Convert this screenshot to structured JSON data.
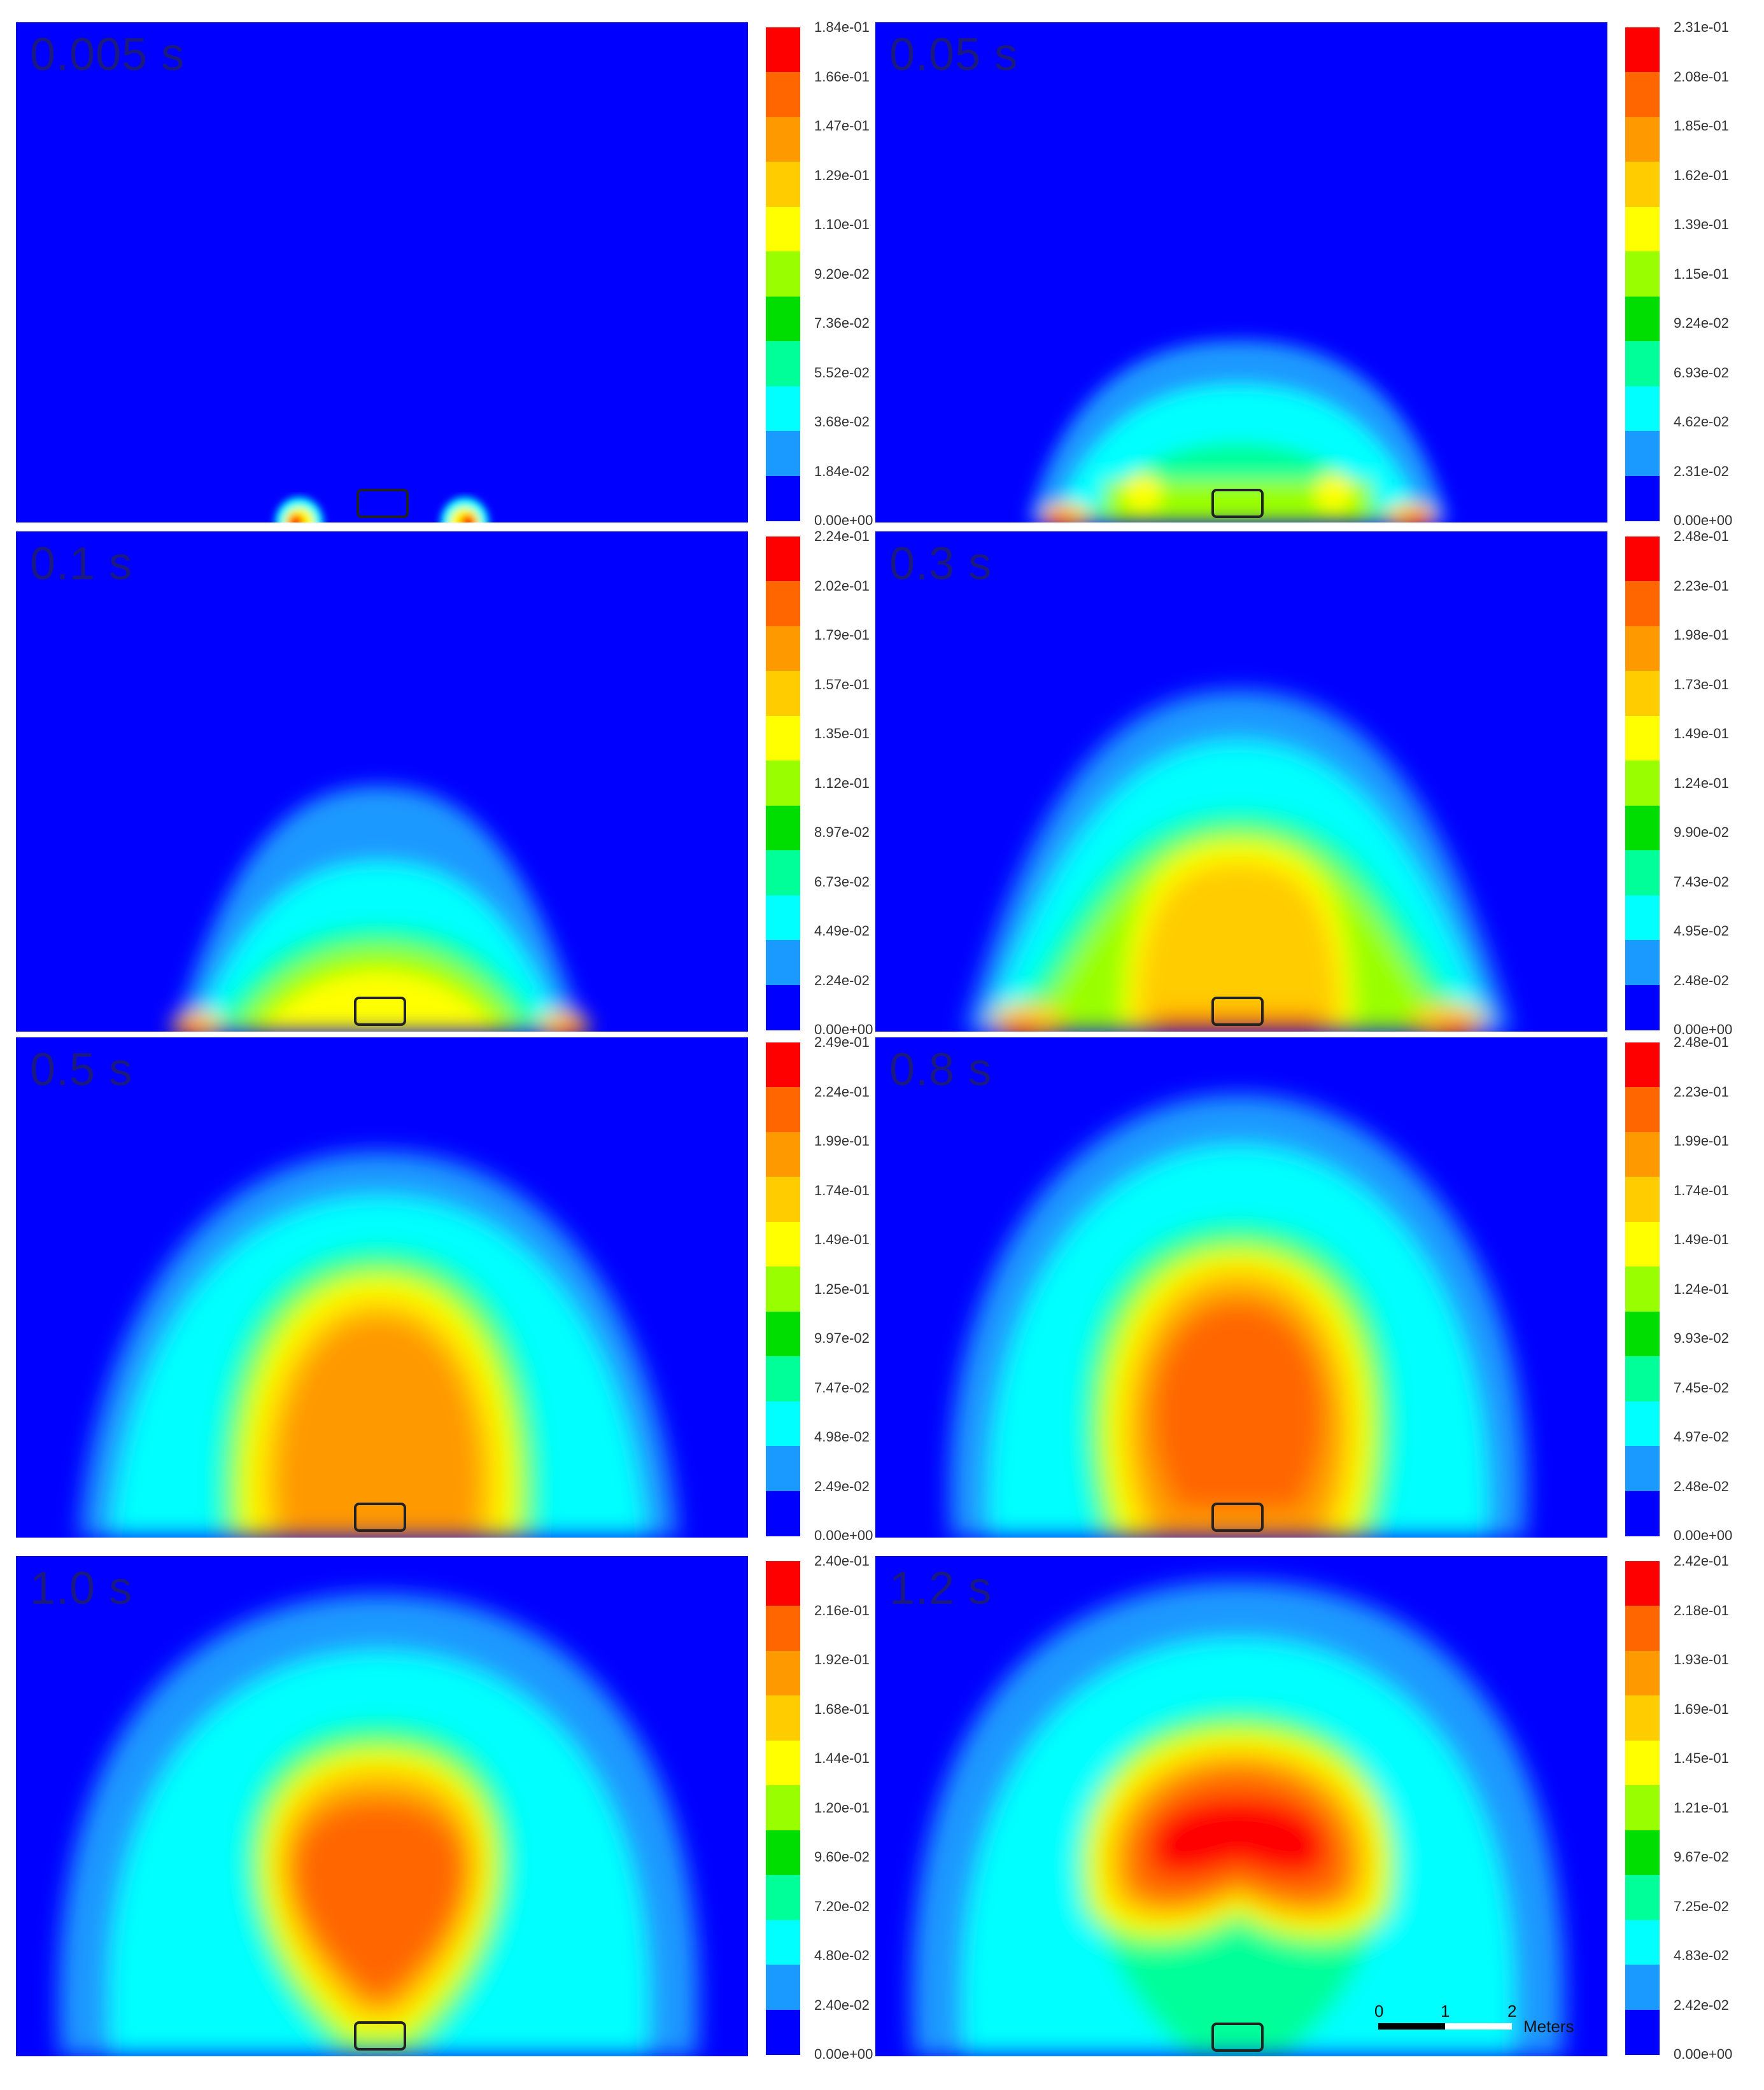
{
  "colorbar_colors": [
    "#0000ff",
    "#1a99ff",
    "#00ffff",
    "#00ff99",
    "#00dd00",
    "#99ff00",
    "#ffff00",
    "#ffcc00",
    "#ff9900",
    "#ff6600",
    "#ff0000"
  ],
  "panels": [
    {
      "time": "0.005 s",
      "ticks": [
        "1.84e-01",
        "1.66e-01",
        "1.47e-01",
        "1.29e-01",
        "1.10e-01",
        "9.20e-02",
        "7.36e-02",
        "5.52e-02",
        "3.68e-02",
        "1.84e-02",
        "0.00e+00"
      ]
    },
    {
      "time": "0.05 s",
      "ticks": [
        "2.31e-01",
        "2.08e-01",
        "1.85e-01",
        "1.62e-01",
        "1.39e-01",
        "1.15e-01",
        "9.24e-02",
        "6.93e-02",
        "4.62e-02",
        "2.31e-02",
        "0.00e+00"
      ]
    },
    {
      "time": "0.1 s",
      "ticks": [
        "2.24e-01",
        "2.02e-01",
        "1.79e-01",
        "1.57e-01",
        "1.35e-01",
        "1.12e-01",
        "8.97e-02",
        "6.73e-02",
        "4.49e-02",
        "2.24e-02",
        "0.00e+00"
      ]
    },
    {
      "time": "0.3 s",
      "ticks": [
        "2.48e-01",
        "2.23e-01",
        "1.98e-01",
        "1.73e-01",
        "1.49e-01",
        "1.24e-01",
        "9.90e-02",
        "7.43e-02",
        "4.95e-02",
        "2.48e-02",
        "0.00e+00"
      ]
    },
    {
      "time": "0.5 s",
      "ticks": [
        "2.49e-01",
        "2.24e-01",
        "1.99e-01",
        "1.74e-01",
        "1.49e-01",
        "1.25e-01",
        "9.97e-02",
        "7.47e-02",
        "4.98e-02",
        "2.49e-02",
        "0.00e+00"
      ]
    },
    {
      "time": "0.8 s",
      "ticks": [
        "2.48e-01",
        "2.23e-01",
        "1.99e-01",
        "1.74e-01",
        "1.49e-01",
        "1.24e-01",
        "9.93e-02",
        "7.45e-02",
        "4.97e-02",
        "2.48e-02",
        "0.00e+00"
      ]
    },
    {
      "time": "1.0 s",
      "ticks": [
        "2.40e-01",
        "2.16e-01",
        "1.92e-01",
        "1.68e-01",
        "1.44e-01",
        "1.20e-01",
        "9.60e-02",
        "7.20e-02",
        "4.80e-02",
        "2.40e-02",
        "0.00e+00"
      ]
    },
    {
      "time": "1.2 s",
      "ticks": [
        "2.42e-01",
        "2.18e-01",
        "1.93e-01",
        "1.69e-01",
        "1.45e-01",
        "1.21e-01",
        "9.67e-02",
        "7.25e-02",
        "4.83e-02",
        "2.42e-02",
        "0.00e+00"
      ]
    }
  ],
  "scale": {
    "labels": [
      "0",
      "1",
      "2"
    ],
    "unit": "Meters"
  }
}
